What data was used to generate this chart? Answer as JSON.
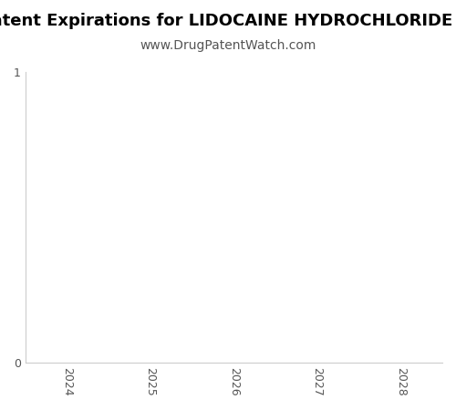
{
  "title": "Patent Expirations for LIDOCAINE HYDROCHLORIDE W",
  "subtitle": "www.DrugPatentWatch.com",
  "title_fontsize": 13,
  "subtitle_fontsize": 10,
  "title_fontweight": "bold",
  "xlim": [
    2023.5,
    2028.5
  ],
  "ylim": [
    0,
    1
  ],
  "xticks": [
    2024,
    2025,
    2026,
    2027,
    2028
  ],
  "yticks": [
    0,
    1
  ],
  "background_color": "#ffffff",
  "plot_bg_color": "#ffffff",
  "spine_color": "#cccccc",
  "tick_label_fontsize": 9,
  "tick_label_color": "#555555"
}
